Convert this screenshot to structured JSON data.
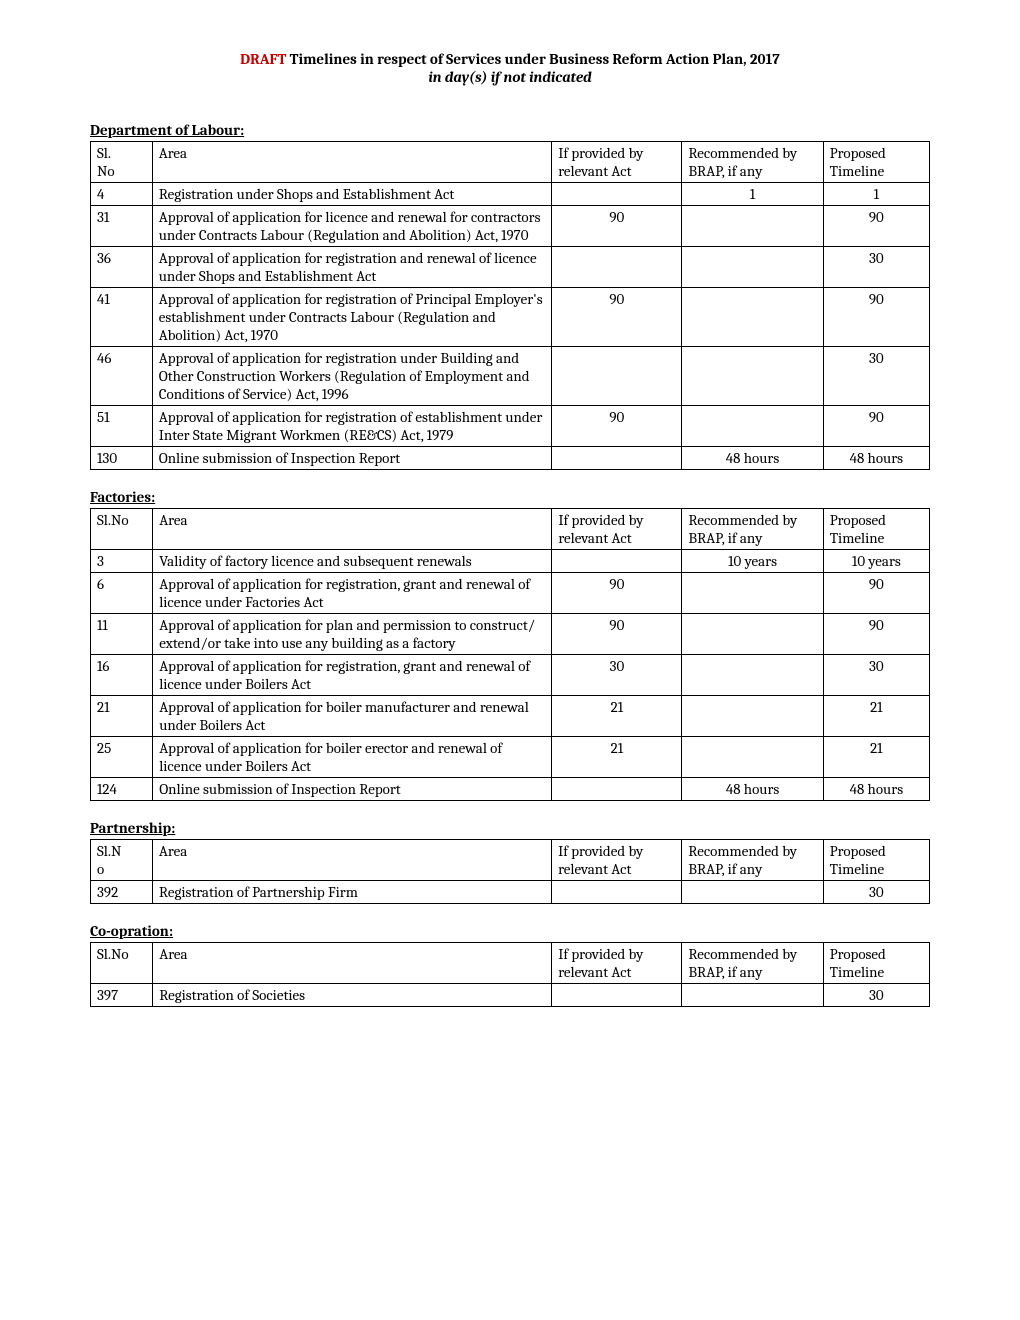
{
  "header": {
    "draft": "DRAFT",
    "main": " Timelines in respect of Services under Business Reform Action Plan, 2017",
    "sub": "in day(s) if not indicated"
  },
  "columns": {
    "slno": "Sl.No",
    "slno_split_a": "Sl.",
    "slno_split_b": "No",
    "area": "Area",
    "act": "If provided by relevant Act",
    "brap": "Recommended by BRAP, if any",
    "prop": "Proposed Timeline"
  },
  "sections": [
    {
      "heading": "Department of Labour:",
      "slno_split": true,
      "rows": [
        {
          "sl": "4",
          "area": "Registration under Shops and Establishment Act",
          "act": "",
          "brap": "1",
          "prop": "1"
        },
        {
          "sl": "31",
          "area": "Approval of application for licence and renewal for contractors under Contracts Labour (Regulation and Abolition) Act, 1970",
          "act": "90",
          "brap": "",
          "prop": "90"
        },
        {
          "sl": "36",
          "area": "Approval of application for registration and renewal of licence under Shops and Establishment Act",
          "act": "",
          "brap": "",
          "prop": "30"
        },
        {
          "sl": "41",
          "area": "Approval of application for registration of Principal Employer's establishment under Contracts Labour (Regulation and Abolition) Act, 1970",
          "act": "90",
          "brap": "",
          "prop": "90"
        },
        {
          "sl": "46",
          "area": "Approval of application for registration under Building and Other Construction Workers (Regulation of Employment and Conditions of Service) Act, 1996",
          "act": "",
          "brap": "",
          "prop": "30"
        },
        {
          "sl": "51",
          "area": "Approval of application for registration of establishment under Inter State Migrant Workmen (RE&CS) Act, 1979",
          "act": "90",
          "brap": "",
          "prop": "90"
        },
        {
          "sl": "130",
          "area": "Online submission of Inspection Report",
          "act": "",
          "brap": "48 hours",
          "prop": "48 hours"
        }
      ]
    },
    {
      "heading": "Factories:",
      "slno_split": false,
      "rows": [
        {
          "sl": "3",
          "area": "Validity of factory licence and subsequent renewals",
          "act": "",
          "brap": "10 years",
          "prop": "10 years"
        },
        {
          "sl": "6",
          "area": "Approval of application for registration, grant and renewal of licence under Factories Act",
          "act": "90",
          "brap": "",
          "prop": "90"
        },
        {
          "sl": "11",
          "area": "Approval of application for plan and permission to construct/ extend/or take into use any building as a factory",
          "act": "90",
          "brap": "",
          "prop": "90"
        },
        {
          "sl": "16",
          "area": "Approval of application for registration, grant and renewal of licence under Boilers Act",
          "act": "30",
          "brap": "",
          "prop": "30"
        },
        {
          "sl": "21",
          "area": "Approval of application for boiler manufacturer and renewal under Boilers Act",
          "act": "21",
          "brap": "",
          "prop": "21"
        },
        {
          "sl": "25",
          "area": "Approval of application for boiler erector and renewal of licence under Boilers Act",
          "act": "21",
          "brap": "",
          "prop": "21"
        },
        {
          "sl": "124",
          "area": "Online submission of Inspection Report",
          "act": "",
          "brap": "48 hours",
          "prop": "48 hours"
        }
      ]
    },
    {
      "heading": "Partnership:",
      "slno_split": true,
      "slno_variant": "o",
      "rows": [
        {
          "sl": "392",
          "area": "Registration of Partnership Firm",
          "act": "",
          "brap": "",
          "prop": "30"
        }
      ]
    },
    {
      "heading": "Co-opration:",
      "slno_split": false,
      "rows": [
        {
          "sl": "397",
          "area": "Registration of Societies",
          "act": "",
          "brap": "",
          "prop": "30"
        }
      ]
    }
  ]
}
